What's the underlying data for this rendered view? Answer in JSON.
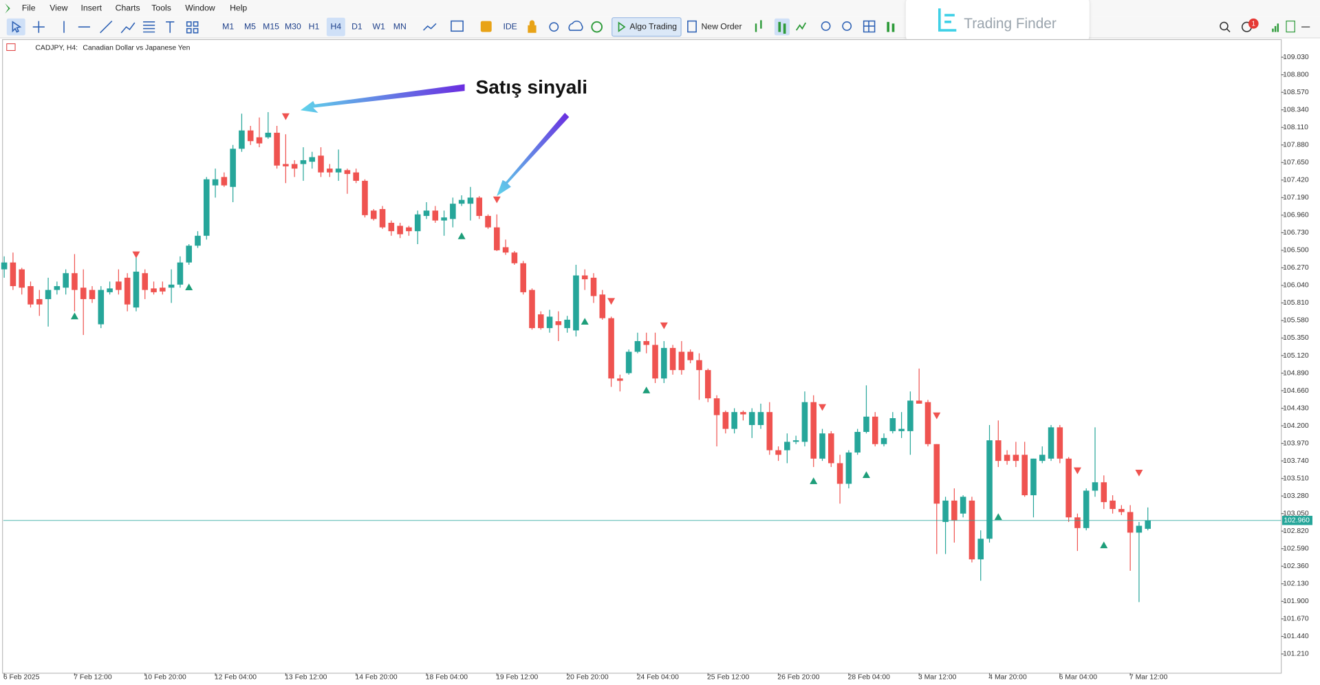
{
  "menu": [
    "File",
    "View",
    "Insert",
    "Charts",
    "Tools",
    "Window",
    "Help"
  ],
  "toolbar": {
    "timeframes": [
      "M1",
      "M5",
      "M15",
      "M30",
      "H1",
      "H4",
      "D1",
      "W1",
      "MN"
    ],
    "active_timeframe": "H4",
    "ide": "IDE",
    "algo_trading": "Algo Trading",
    "new_order": "New Order"
  },
  "logo": "Trading Finder",
  "notification_count": 1,
  "annotation": "Satış sinyali",
  "chart_data": {
    "type": "candlestick",
    "symbol": "CADJPY, H4:",
    "description": "Canadian Dollar vs Japanese Yen",
    "up_color": "#26a69a",
    "down_color": "#ef5350",
    "open": [
      106.25,
      106.34,
      106.25,
      106.03,
      105.86,
      105.86,
      105.98,
      106.01,
      106.2,
      106.01,
      105.98,
      105.53,
      105.95,
      106.09,
      106.14,
      105.75,
      106.2,
      106.0,
      106.01,
      106.01,
      106.05,
      106.34,
      106.56,
      106.69,
      107.35,
      107.46,
      107.33,
      107.83,
      108.07,
      107.98,
      107.98,
      108.04,
      107.63,
      107.63,
      107.63,
      107.66,
      107.74,
      107.57,
      107.52,
      107.55,
      107.52,
      107.41,
      107.02,
      107.04,
      106.86,
      106.82,
      106.8,
      106.75,
      106.95,
      107.02,
      106.89,
      106.91,
      107.11,
      107.11,
      107.19,
      106.95,
      106.8,
      106.54,
      106.47,
      106.33,
      105.98,
      105.66,
      105.48,
      105.57,
      105.48,
      105.45,
      106.17,
      106.14,
      105.92,
      105.61,
      104.82,
      104.89,
      105.17,
      105.31,
      105.26,
      104.82,
      105.22,
      105.17,
      105.17,
      105.06,
      104.93,
      104.56,
      104.38,
      104.16,
      104.38,
      104.21,
      104.21,
      104.38,
      103.88,
      103.88,
      103.99,
      103.99,
      104.51,
      103.77,
      104.1,
      103.71,
      103.44,
      103.85,
      104.12,
      104.32,
      103.96,
      104.13,
      104.13,
      104.13,
      104.53,
      104.51,
      103.96,
      102.94,
      103.22,
      103.05,
      103.22,
      102.45,
      102.72,
      104.01,
      103.82,
      103.82,
      103.82,
      103.29,
      103.74,
      103.77,
      104.18,
      103.77,
      103.0,
      102.86,
      103.35,
      103.46,
      103.22,
      103.11,
      103.07,
      102.8,
      102.85
    ],
    "high": [
      106.42,
      106.47,
      106.27,
      106.09,
      105.98,
      106.14,
      106.09,
      106.25,
      106.45,
      106.25,
      106.03,
      106.03,
      106.09,
      106.25,
      106.2,
      106.42,
      106.25,
      106.09,
      106.09,
      106.25,
      106.42,
      106.58,
      106.75,
      107.46,
      107.57,
      107.52,
      107.88,
      108.29,
      108.13,
      108.24,
      108.31,
      108.13,
      108.02,
      107.68,
      107.85,
      107.79,
      107.85,
      107.63,
      107.82,
      107.57,
      107.57,
      107.43,
      107.04,
      107.08,
      106.89,
      106.86,
      106.82,
      107.02,
      107.13,
      107.08,
      107.02,
      107.19,
      107.22,
      107.33,
      107.21,
      106.97,
      106.97,
      106.64,
      106.49,
      106.36,
      106.0,
      105.7,
      105.72,
      105.7,
      105.64,
      106.31,
      106.25,
      106.2,
      105.98,
      105.63,
      104.87,
      105.2,
      105.42,
      105.42,
      105.42,
      105.31,
      105.26,
      105.31,
      105.2,
      105.15,
      104.95,
      104.6,
      104.4,
      104.43,
      104.4,
      104.43,
      104.49,
      104.51,
      103.93,
      104.1,
      104.07,
      104.65,
      104.6,
      104.16,
      104.13,
      103.82,
      103.88,
      104.16,
      104.73,
      104.38,
      104.1,
      104.38,
      104.38,
      104.65,
      104.95,
      104.54,
      103.96,
      103.27,
      103.38,
      103.29,
      103.27,
      102.83,
      104.21,
      104.27,
      103.88,
      103.99,
      103.99,
      103.77,
      103.93,
      104.21,
      104.21,
      103.79,
      103.05,
      103.38,
      104.18,
      103.55,
      103.29,
      103.16,
      103.16,
      102.94,
      103.13
    ],
    "low": [
      106.14,
      105.98,
      105.92,
      105.75,
      105.64,
      105.5,
      105.92,
      105.92,
      105.7,
      105.39,
      105.81,
      105.48,
      105.92,
      105.92,
      105.7,
      105.7,
      105.86,
      105.92,
      105.92,
      105.81,
      106.01,
      106.31,
      106.53,
      106.64,
      107.19,
      107.33,
      107.13,
      107.79,
      107.88,
      107.85,
      107.96,
      107.57,
      107.38,
      107.46,
      107.41,
      107.57,
      107.46,
      107.46,
      107.41,
      107.24,
      107.38,
      106.93,
      106.89,
      106.78,
      106.69,
      106.66,
      106.69,
      106.58,
      106.91,
      106.86,
      106.69,
      106.8,
      107.08,
      106.89,
      106.91,
      106.78,
      106.49,
      106.44,
      106.31,
      105.92,
      105.46,
      105.46,
      105.42,
      105.31,
      105.42,
      105.37,
      105.98,
      105.81,
      105.59,
      104.71,
      104.65,
      104.87,
      105.15,
      105.15,
      104.76,
      104.76,
      104.87,
      104.87,
      105.02,
      104.54,
      104.51,
      103.93,
      104.1,
      104.1,
      104.27,
      104.04,
      104.16,
      103.82,
      103.74,
      103.71,
      103.96,
      103.93,
      103.66,
      103.74,
      103.66,
      103.18,
      103.38,
      103.82,
      104.1,
      103.93,
      103.93,
      104.1,
      104.04,
      103.82,
      104.49,
      103.93,
      102.52,
      102.52,
      102.67,
      103.0,
      102.41,
      102.17,
      102.67,
      103.66,
      103.69,
      103.66,
      103.27,
      103.0,
      103.71,
      103.74,
      103.71,
      102.94,
      102.56,
      102.83,
      103.27,
      103.11,
      103.05,
      103.03,
      102.3,
      101.89,
      102.83
    ],
    "close": [
      106.34,
      106.03,
      106.01,
      105.79,
      105.79,
      105.98,
      106.03,
      106.2,
      105.98,
      105.86,
      105.86,
      105.98,
      106.0,
      105.98,
      105.79,
      106.22,
      105.98,
      105.95,
      105.96,
      106.05,
      106.34,
      106.56,
      106.69,
      107.43,
      107.43,
      107.35,
      107.83,
      108.07,
      107.93,
      107.9,
      108.04,
      107.61,
      107.6,
      107.57,
      107.68,
      107.72,
      107.52,
      107.52,
      107.57,
      107.5,
      107.41,
      106.96,
      106.91,
      106.8,
      106.75,
      106.71,
      106.75,
      106.97,
      107.02,
      106.89,
      106.93,
      107.11,
      107.16,
      107.19,
      106.95,
      106.8,
      106.5,
      106.47,
      106.33,
      105.95,
      105.48,
      105.48,
      105.63,
      105.52,
      105.59,
      106.17,
      106.12,
      105.9,
      105.61,
      104.82,
      104.79,
      105.17,
      105.31,
      105.26,
      104.82,
      105.22,
      104.93,
      104.93,
      105.06,
      104.93,
      104.56,
      104.34,
      104.16,
      104.38,
      104.35,
      104.38,
      104.38,
      103.88,
      103.82,
      103.99,
      104.01,
      104.51,
      103.77,
      104.1,
      103.71,
      103.44,
      103.85,
      104.12,
      104.32,
      103.96,
      104.04,
      104.3,
      104.16,
      104.53,
      104.49,
      103.96,
      103.18,
      103.22,
      102.96,
      103.27,
      102.45,
      102.72,
      104.01,
      103.74,
      103.74,
      103.74,
      103.29,
      103.77,
      103.82,
      104.18,
      103.77,
      103.0,
      102.86,
      103.35,
      103.46,
      103.2,
      103.11,
      103.07,
      102.8,
      102.89,
      102.96
    ],
    "xticks": [
      {
        "value": 0,
        "label": "6 Feb 2025"
      },
      {
        "value": 8,
        "label": "7 Feb 12:00"
      },
      {
        "value": 16,
        "label": "10 Feb 20:00"
      },
      {
        "value": 24,
        "label": "12 Feb 04:00"
      },
      {
        "value": 32,
        "label": "13 Feb 12:00"
      },
      {
        "value": 40,
        "label": "14 Feb 20:00"
      },
      {
        "value": 48,
        "label": "18 Feb 04:00"
      },
      {
        "value": 56,
        "label": "19 Feb 12:00"
      },
      {
        "value": 64,
        "label": "20 Feb 20:00"
      },
      {
        "value": 72,
        "label": "24 Feb 04:00"
      },
      {
        "value": 80,
        "label": "25 Feb 12:00"
      },
      {
        "value": 88,
        "label": "26 Feb 20:00"
      },
      {
        "value": 96,
        "label": "28 Feb 04:00"
      },
      {
        "value": 104,
        "label": "3 Mar 12:00"
      },
      {
        "value": 112,
        "label": "4 Mar 20:00"
      },
      {
        "value": 120,
        "label": "6 Mar 04:00"
      },
      {
        "value": 128,
        "label": "7 Mar 12:00"
      }
    ],
    "ylim": [
      100.98,
      109.25
    ],
    "yticks": [
      {
        "value": 109.03,
        "label": "109.030"
      },
      {
        "value": 108.8,
        "label": "108.800"
      },
      {
        "value": 108.57,
        "label": "108.570"
      },
      {
        "value": 108.34,
        "label": "108.340"
      },
      {
        "value": 108.11,
        "label": "108.110"
      },
      {
        "value": 107.88,
        "label": "107.880"
      },
      {
        "value": 107.65,
        "label": "107.650"
      },
      {
        "value": 107.42,
        "label": "107.420"
      },
      {
        "value": 107.19,
        "label": "107.190"
      },
      {
        "value": 106.96,
        "label": "106.960"
      },
      {
        "value": 106.73,
        "label": "106.730"
      },
      {
        "value": 106.5,
        "label": "106.500"
      },
      {
        "value": 106.27,
        "label": "106.270"
      },
      {
        "value": 106.04,
        "label": "106.040"
      },
      {
        "value": 105.81,
        "label": "105.810"
      },
      {
        "value": 105.58,
        "label": "105.580"
      },
      {
        "value": 105.35,
        "label": "105.350"
      },
      {
        "value": 105.12,
        "label": "105.120"
      },
      {
        "value": 104.89,
        "label": "104.890"
      },
      {
        "value": 104.66,
        "label": "104.660"
      },
      {
        "value": 104.43,
        "label": "104.430"
      },
      {
        "value": 104.2,
        "label": "104.200"
      },
      {
        "value": 103.97,
        "label": "103.970"
      },
      {
        "value": 103.74,
        "label": "103.740"
      },
      {
        "value": 103.51,
        "label": "103.510"
      },
      {
        "value": 103.28,
        "label": "103.280"
      },
      {
        "value": 103.05,
        "label": "103.050"
      },
      {
        "value": 102.82,
        "label": "102.820"
      },
      {
        "value": 102.59,
        "label": "102.590"
      },
      {
        "value": 102.36,
        "label": "102.360"
      },
      {
        "value": 102.13,
        "label": "102.130"
      },
      {
        "value": 101.9,
        "label": "101.900"
      },
      {
        "value": 101.67,
        "label": "101.670"
      },
      {
        "value": 101.44,
        "label": "101.440"
      },
      {
        "value": 101.21,
        "label": "101.210"
      }
    ],
    "grid": false,
    "price_line": {
      "value": 102.96,
      "label": "102.960",
      "color": "#26a69a"
    },
    "sell_signals": {
      "color": "#ef5350",
      "x": [
        15,
        32,
        56,
        69,
        75,
        93,
        106,
        122,
        129
      ],
      "y": [
        106.44,
        108.25,
        107.16,
        105.83,
        105.51,
        104.44,
        104.33,
        103.61,
        103.58
      ]
    },
    "buy_signals": {
      "color": "#1e9e7a",
      "x": [
        8,
        21,
        52,
        66,
        73,
        92,
        98,
        113,
        125
      ],
      "y": [
        105.64,
        106.02,
        106.69,
        105.57,
        104.67,
        103.48,
        103.56,
        103.01,
        102.64
      ]
    }
  }
}
